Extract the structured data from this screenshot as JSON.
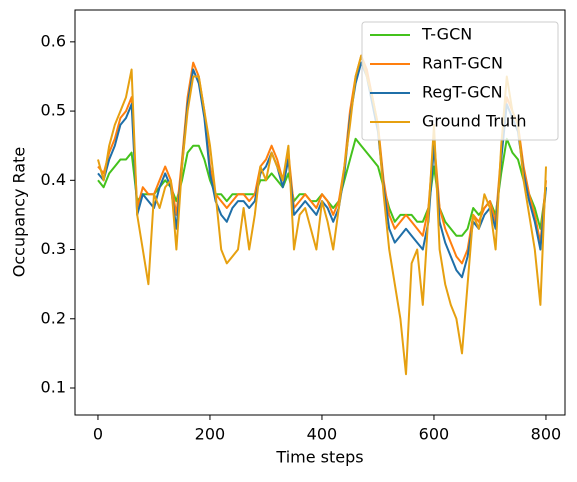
{
  "chart_data": {
    "type": "line",
    "xlabel": "Time steps",
    "ylabel": "Occupancy Rate",
    "xlim": [
      -41,
      834
    ],
    "ylim": [
      0.061,
      0.646
    ],
    "xticks": [
      0,
      200,
      400,
      600,
      800
    ],
    "yticks": [
      0.1,
      0.2,
      0.3,
      0.4,
      0.5,
      0.6
    ],
    "legend": "upper right",
    "x": [
      0,
      10,
      20,
      30,
      40,
      50,
      60,
      70,
      80,
      90,
      100,
      110,
      120,
      130,
      140,
      150,
      160,
      170,
      180,
      190,
      200,
      210,
      220,
      230,
      240,
      250,
      260,
      270,
      280,
      290,
      300,
      310,
      320,
      330,
      340,
      350,
      360,
      370,
      380,
      390,
      400,
      410,
      420,
      430,
      440,
      450,
      460,
      470,
      480,
      490,
      500,
      510,
      520,
      530,
      540,
      550,
      560,
      570,
      580,
      590,
      600,
      610,
      620,
      630,
      640,
      650,
      660,
      670,
      680,
      690,
      700,
      710,
      720,
      730,
      740,
      750,
      760,
      770,
      780,
      790,
      800
    ],
    "series": [
      {
        "name": "T-GCN",
        "color": "#44c21c",
        "values": [
          0.4,
          0.39,
          0.41,
          0.42,
          0.43,
          0.43,
          0.44,
          0.37,
          0.38,
          0.38,
          0.38,
          0.39,
          0.4,
          0.39,
          0.37,
          0.4,
          0.44,
          0.45,
          0.45,
          0.43,
          0.4,
          0.38,
          0.38,
          0.37,
          0.38,
          0.38,
          0.38,
          0.38,
          0.38,
          0.4,
          0.4,
          0.41,
          0.4,
          0.39,
          0.41,
          0.37,
          0.38,
          0.38,
          0.37,
          0.37,
          0.38,
          0.37,
          0.36,
          0.37,
          0.4,
          0.43,
          0.46,
          0.45,
          0.44,
          0.43,
          0.42,
          0.39,
          0.36,
          0.34,
          0.35,
          0.35,
          0.35,
          0.34,
          0.34,
          0.36,
          0.42,
          0.36,
          0.34,
          0.33,
          0.32,
          0.32,
          0.33,
          0.36,
          0.35,
          0.36,
          0.37,
          0.35,
          0.41,
          0.46,
          0.44,
          0.43,
          0.4,
          0.38,
          0.36,
          0.33,
          0.39
        ]
      },
      {
        "name": "RanT-GCN",
        "color": "#ff7f0e",
        "values": [
          0.42,
          0.41,
          0.44,
          0.46,
          0.49,
          0.5,
          0.52,
          0.36,
          0.39,
          0.38,
          0.38,
          0.4,
          0.42,
          0.4,
          0.35,
          0.43,
          0.52,
          0.57,
          0.55,
          0.5,
          0.42,
          0.38,
          0.37,
          0.36,
          0.37,
          0.38,
          0.38,
          0.37,
          0.38,
          0.42,
          0.43,
          0.45,
          0.43,
          0.4,
          0.44,
          0.36,
          0.37,
          0.38,
          0.37,
          0.36,
          0.38,
          0.37,
          0.35,
          0.37,
          0.42,
          0.5,
          0.55,
          0.58,
          0.56,
          0.52,
          0.48,
          0.4,
          0.35,
          0.33,
          0.34,
          0.35,
          0.34,
          0.33,
          0.32,
          0.36,
          0.46,
          0.36,
          0.33,
          0.31,
          0.29,
          0.28,
          0.3,
          0.35,
          0.34,
          0.36,
          0.37,
          0.34,
          0.44,
          0.52,
          0.5,
          0.48,
          0.42,
          0.38,
          0.35,
          0.31,
          0.4
        ]
      },
      {
        "name": "RegT-GCN",
        "color": "#1f6fa8",
        "values": [
          0.41,
          0.4,
          0.43,
          0.45,
          0.48,
          0.49,
          0.51,
          0.35,
          0.38,
          0.37,
          0.36,
          0.39,
          0.41,
          0.39,
          0.33,
          0.42,
          0.51,
          0.56,
          0.54,
          0.49,
          0.41,
          0.37,
          0.35,
          0.34,
          0.36,
          0.37,
          0.37,
          0.36,
          0.37,
          0.41,
          0.42,
          0.44,
          0.42,
          0.39,
          0.43,
          0.35,
          0.36,
          0.37,
          0.36,
          0.35,
          0.37,
          0.36,
          0.34,
          0.36,
          0.41,
          0.49,
          0.54,
          0.57,
          0.55,
          0.51,
          0.47,
          0.39,
          0.33,
          0.31,
          0.32,
          0.33,
          0.32,
          0.31,
          0.3,
          0.34,
          0.45,
          0.34,
          0.31,
          0.29,
          0.27,
          0.26,
          0.29,
          0.34,
          0.33,
          0.35,
          0.36,
          0.33,
          0.43,
          0.51,
          0.49,
          0.47,
          0.41,
          0.37,
          0.34,
          0.3,
          0.39
        ]
      },
      {
        "name": "Ground Truth",
        "color": "#e6a010",
        "values": [
          0.43,
          0.4,
          0.45,
          0.48,
          0.5,
          0.52,
          0.56,
          0.35,
          0.3,
          0.25,
          0.38,
          0.36,
          0.39,
          0.4,
          0.3,
          0.42,
          0.5,
          0.55,
          0.55,
          0.5,
          0.45,
          0.38,
          0.3,
          0.28,
          0.29,
          0.3,
          0.36,
          0.3,
          0.35,
          0.42,
          0.4,
          0.44,
          0.42,
          0.4,
          0.45,
          0.3,
          0.35,
          0.36,
          0.33,
          0.3,
          0.37,
          0.34,
          0.3,
          0.36,
          0.42,
          0.48,
          0.55,
          0.58,
          0.55,
          0.52,
          0.48,
          0.38,
          0.3,
          0.25,
          0.2,
          0.12,
          0.28,
          0.3,
          0.22,
          0.35,
          0.48,
          0.3,
          0.25,
          0.22,
          0.2,
          0.15,
          0.25,
          0.35,
          0.33,
          0.38,
          0.36,
          0.3,
          0.45,
          0.55,
          0.5,
          0.48,
          0.4,
          0.35,
          0.3,
          0.22,
          0.42
        ]
      }
    ]
  }
}
